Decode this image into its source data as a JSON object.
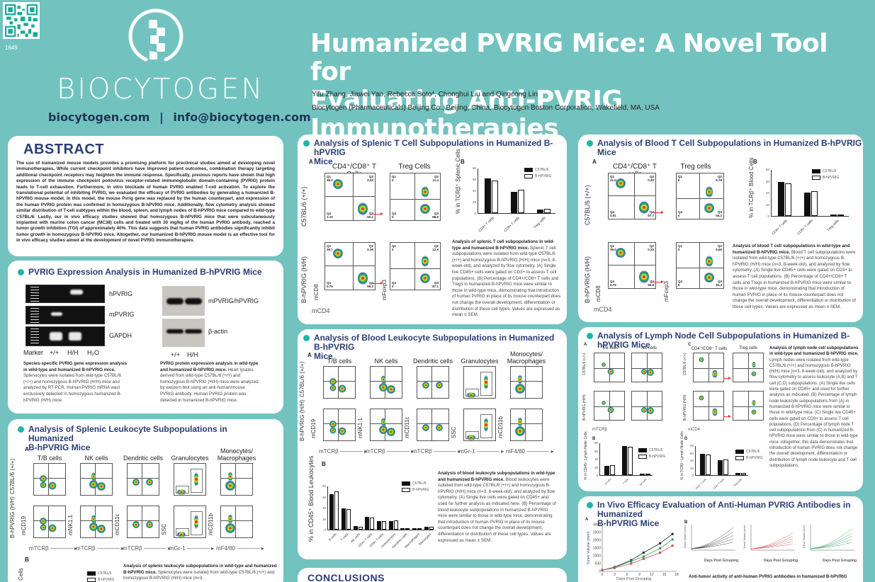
{
  "header": {
    "poster_number": "1649",
    "logo_text": "BIOCYTOGEN",
    "website": "biocytogen.com",
    "separator": "|",
    "email": "info@biocytogen.com",
    "title_line1": "Humanized PVRIG Mice: A Novel Tool for",
    "title_line2": "Evaluating Anti-PVRIG Immunotherapies",
    "authors": "Yifu Zhang, Jiawei Yao, Rebecca Soto*, Chonghui Liu and Qingcong Lin",
    "affiliation": "Biocytogen (Pharmaceuticals) Beijing Co., Beijing, China; Biocytogen Boston Corporation, Wakefield, MA, USA"
  },
  "abstract": {
    "heading": "ABSTRACT",
    "text": "The use of humanized mouse models provides a promising platform for preclinical studies aimed at developing novel immunotherapies. While current checkpoint inhibitors have improved patient outcomes, combination therapy targeting additional checkpoint receptors may heighten the immune response. Specifically, previous reports have shown that high expression of the immune checkpoint poliovirus receptor-related immunoglobulin domain-containing (PVRIG) protein leads to T-cell exhaustion. Furthermore, in vitro blockade of human PVRIG enabled T-cell activation. To explore the translational potential of inhibiting PVRIG, we evaluated the efficacy of PVRIG antibodies by generating a humanized B-hPVRIG mouse model. In this model, the mouse Pvrig gene was replaced by the human counterpart, and expression of the human PVRIG protein was confirmed in homozygous B-hPVRIG mice. Additionally, flow cytometry analysis showed similar distribution of T-cell subtypes within the blood, spleen, and lymph nodes of B-hPVRIG mice compared to wild-type C57BL/6. Lastly, our in vivo efficacy studies showed that homozygous B-hPVRIG mice that were subcutaneously implanted with murine colon cancer (MC38) cells and treated with 30 mg/kg of the human PVRIG antibody, reached a tumor growth inhibition (TGI) of approximately 40%. This data suggests that human PVRIG antibodies significantly inhibit tumor growth in homozygous B-hPVRIG mice. Altogether, our humanized B-hPVRIG mouse model is an effective tool for in vivo efficacy studies aimed at the development of novel PVRIG immunotherapies."
  },
  "expression": {
    "title": "PVRIG Expression Analysis in Humanized B-hPVRIG Mice",
    "gel_labels": [
      "hPVRIG",
      "mPVRIG",
      "GAPDH"
    ],
    "gel_lanes": [
      "Marker",
      "+/+",
      "H/H",
      "H₂O"
    ],
    "wb_labels": [
      "mPVRIG/hPVRIG",
      "β-actin"
    ],
    "wb_lanes": [
      "+/+",
      "H/H"
    ],
    "caption_left_bold": "Species-specific PVRIG gene expression analysis in wild-type and humanized B-hPVRIG mice.",
    "caption_left": "Splenocytes were isolated from wild-type C57BL/6 (+/+) and homozygous B-hPVRIG (H/H) mice and analyzed by RT-PCR. Human PVRIG mRNA wast exclusively detected in homozygous humanized B-hPVRIG (H/H) mice.",
    "caption_right_bold": "PVRIG protein expression analysis in wild-type and humanized B-hPVRIG mice.",
    "caption_right": "Heart lysates derived from wild-type C57BL/6 (+/+) and homozygous B-hPVRIG (H/H) mice were analyzed by western blot using an anti-human/mouse PVRIG antibody. Human PVRIG protein was detected in humanized B-hPVRIG mice."
  },
  "splenic_leuk": {
    "title_line1": "Analysis of Splenic Leukocyte Subpopulations in Humanized",
    "title_line2": "B-hPVRIG Mice",
    "label_a": "A",
    "label_b": "B",
    "columns": [
      "T/B cells",
      "NK cells",
      "Dendritic cells",
      "Granulocytes",
      "Monocytes/\nMacrophages"
    ],
    "rows": [
      "C57BL/6 (+/+)",
      "B-hPVRIG (H/H)"
    ],
    "x_axes": [
      "mTCRβ",
      "mTCRβ",
      "mTCRβ",
      "mGr-1",
      "mF4/80"
    ],
    "y_axes": [
      "mCD19",
      "mNK1.1",
      "mCD11c",
      "SSC",
      "mCD11b"
    ],
    "legend": [
      "C57BL/6",
      "B-hPVRIG"
    ],
    "y_partial": "Cells",
    "caption_bold": "Analysis of splenic leukocyte subpopulations in wild-type and humanized B-hPVRIG mice.",
    "caption": "Splenocytes were isolated from wild-type C57BL/6 (+/+) and homozygous B-hPVRIG (H/H) mice (n=3,"
  },
  "splenic_t": {
    "title_line1": "Analysis of Splenic T Cell Subpopulations in Humanized B-hPVRIG",
    "title_line2": "Mice",
    "label_a": "A",
    "label_b": "B",
    "col_cd": "CD4⁺/CD8⁺ T Cells",
    "col_treg": "Treg Cells",
    "rows": [
      "C57BL/6 (+/+)",
      "B-hPVRIG (H/H)"
    ],
    "x_axis": "mCD4",
    "y_axis_cd8": "mCD8",
    "y_axis_foxp3": "mFoxp3",
    "wt_q": {
      "q1": "38.2",
      "q2": "0.53",
      "q3": "60.2",
      "q4": "1.10"
    },
    "hh_q": {
      "q1": "39.7",
      "q2": "0.36",
      "q3": "59.2",
      "q4": "0.75"
    },
    "wt_treg": {
      "q1": "0",
      "q2": "11.4",
      "q3": "88.6",
      "q4": "0"
    },
    "hh_treg": {
      "q1": "0",
      "q2": "12.9",
      "q3": "87.1",
      "q4": "0"
    },
    "legend": [
      "C57BL/6",
      "B-hPVRIG"
    ],
    "y_label": "% in TCRβ⁺ Splenic Cells",
    "caption_bold": "Analysis of splenic T cell subpopulations in wild-type and humanized B-hPVRIG mice.",
    "caption": "Splenic T cell subpopulations were isolated from wild-type C57BL/6 (+/+) and homozygous B-hPVRIG (H/H) mice (n=3, 8-week-old), and analyzed by flow cytometry. (A) Single live CD45+ cells were gated on CD3+ to assess T cell populations. (B) Percentage of CD4+/CD8+ T cells and Tregs in humanized B-hPVRIG mice were similar to those in wild-type mice, demonstrating that introduction of human PVRIG in place of its mouse counterpart does not change the overall development, differentiation or distribution of these cell types. Values are expressed as mean ± SEM."
  },
  "blood_leuk": {
    "title_line1": "Analysis of Blood Leukocyte Subpopulations in Humanized B-hPVRIG",
    "title_line2": "Mice",
    "label_a": "A",
    "label_b": "B",
    "columns": [
      "T/B cells",
      "NK cells",
      "Dendritic cells",
      "Granulocytes",
      "Monocytes/\nMacrophages"
    ],
    "rows": [
      "C57BL/6 (+/+)",
      "B-hPVRIG (H/H)"
    ],
    "x_axes": [
      "mTCRβ",
      "mTCRβ",
      "mTCRβ",
      "mGr-1",
      "mF4/80"
    ],
    "y_axes": [
      "mCD19",
      "mNK1.1",
      "mCD11c",
      "SSC",
      "mCD11b"
    ],
    "legend": [
      "C57BL/6",
      "B-hPVRIG"
    ],
    "y_label": "% in CD45⁺ Blood Leukocytes",
    "caption_bold": "Analysis of blood leukocyte subpopulations in wild-type and humanized B-hPVRIG mice.",
    "caption": "Blood leukocytes were isolated from wild-type C57BL/6 (+/+) and homozygous B-hPVRIG (H/H) mice (n=3, 8-week-old), and analyzed by flow cytometry. (A) Single live cells were gated on CD45+ and used for further analysis as indicated here. (B) Percentage of blood leukocyte subpopulations in humanized B-hPVRIG mice were similar to those in wild-type mice, demonstrating that introduction of human PVRIG in place of its mouse counterpart does not change the overall development, differentiation or distribution of these cell types. Values are expressed as mean ± SEM."
  },
  "conclusions": {
    "heading": "CONCLUSIONS"
  },
  "blood_t": {
    "title": "Analysis of Blood T Cell Subpopulations in Humanized B-hPVRIG Mice",
    "label_a": "A",
    "label_b": "B",
    "col_cd": "CD4⁺/CD8⁺ T cells",
    "col_treg": "Treg cells",
    "rows": [
      "C57BL/6 (+/+)",
      "B-hPVRIG (H/H)"
    ],
    "x_axis": "mCD4",
    "y_axis_cd8": "mCD8",
    "y_axis_foxp3": "mFoxp3",
    "wt_q": {
      "q1": "41.0",
      "q2": "0.30",
      "q3": "57.7",
      "q4": "0.81"
    },
    "hh_q": {
      "q1": "39.0",
      "q2": "0.32",
      "q3": "59.9",
      "q4": "0.79"
    },
    "wt_treg": {
      "q1": "0",
      "q2": "5.79",
      "q3": "94.2",
      "q4": "0"
    },
    "hh_treg": {
      "q1": "0",
      "q2": "5.65",
      "q3": "94.3",
      "q4": "0"
    },
    "legend": [
      "C57BL/6",
      "B-hPVRIG"
    ],
    "y_label": "% in TCRβ⁺ Blood Cells",
    "caption_bold": "Analysis of blood T cell subpopulations in wild-type and humanized B-hPVRIG mice.",
    "caption": "Blood T cell subpopulations were isolated from wild-type C57BL/6 (+/+) and homozygous B-hPVRIG (H/H) mice (n=3, 8-week-old), and analyzed by flow cytometry. (A) Single live CD45+ cells were gated on CD3+ to assess T cell populations. (B) Percentage of CD4+/CD8+ T cells and Tregs in humanized B-hPVRIG mice were similar to those in wild-type mice, demonstrating that introduction of human PVRIG in place of its mouse counterpart does not change the overall development, differentiation or distribution of these cell types. Values are expressed as mean ± SEM."
  },
  "lymph": {
    "title": "Analysis of Lymph Node Cell Subpopulations in Humanized B-hPVRIG Mice",
    "labels": [
      "A",
      "B",
      "C",
      "D"
    ],
    "col_heads": [
      "T/B cells",
      "NK cells",
      "CD4⁺/CD8⁺ T cells",
      "Treg cells"
    ],
    "rows": [
      "C57BL/6 (+/+)",
      "B-hPVRIG (H/H)"
    ],
    "x_axes": [
      "mTCRβ",
      "mCD4"
    ],
    "y_axes": [
      "mCD19",
      "mNK1.1",
      "mCD8",
      "mFoxp3"
    ],
    "legend": [
      "C57BL/6",
      "B-hPVRIG"
    ],
    "y_label_b": "% in CD45⁺ Lymph Node Cells",
    "y_label_d": "% in TCRβ⁺ Lymph Node Cells",
    "caption_bold": "Analysis of lymph node cell subpopulations in wild-type and humanized B-hPVRIG mice.",
    "caption": "Lymph nodes were isolated from wild-type C57BL/6 (+/+) and homozygous B-hPVRIG (H/H) mice (n=3, 8-week-old), and analyzed by flow cytometry to assess leukocyte (A,B) and T cell (C,D) subpopulations. (A) Single live cells were gated on CD45+ and used for further analysis as indicated. (B) Percentage of lymph node leukocyte subpopulations from (A) in humanized B-hPVRIG mice were similar to those in wild-type mice. (C) Single live CD45+ cells were gated on CD3+ to assess T cell populations. (D) Percentage of lymph node T cell subpopulations from (C) in humanized B-hPVRIG mice were similar to those in wild-type mice. Altogether, this data demonstrates that introduction of human PVRIG does not change the overall development, differentiation or distribution of lymph node leukocyte and T cell subpopulations."
  },
  "invivo": {
    "title_line1": "In Vivo Efficacy Evaluation of Anti-Human PVRIG Antibodies in Humanized",
    "title_line2": "B-hPVRIG Mice",
    "label_a": "A",
    "label_b": "B",
    "x_label": "Days Post Grouping",
    "y_label": "Tumor Volume (mm³)",
    "caption_bold": "Anti-tumor activity of anti-human PVRIG antibodies in humanized B-hPVRIG"
  },
  "chart_data": [
    {
      "type": "bar",
      "title": "Splenic T cells (B)",
      "categories": [
        "CD4+ T cells",
        "CD8+ T cells",
        "Treg cells"
      ],
      "series": [
        {
          "name": "C57BL/6",
          "values": [
            61,
            37,
            6
          ]
        },
        {
          "name": "B-hPVRIG",
          "values": [
            57,
            41,
            7
          ]
        }
      ],
      "ylabel": "% in TCRβ+ Splenic Cells",
      "ylim": [
        0,
        80
      ]
    },
    {
      "type": "bar",
      "title": "Blood T cells (B)",
      "categories": [
        "CD4+ T cells",
        "CD8+ T cells",
        "Treg cells"
      ],
      "series": [
        {
          "name": "C57BL/6",
          "values": [
            58,
            40,
            3
          ]
        },
        {
          "name": "B-hPVRIG",
          "values": [
            56,
            43,
            3
          ]
        }
      ],
      "ylabel": "% in TCRβ+ Blood Cells",
      "ylim": [
        0,
        80
      ]
    },
    {
      "type": "bar",
      "title": "Blood leukocytes (B)",
      "categories": [
        "B cells",
        "T cells",
        "NK cells",
        "CD4+ T cells",
        "CD8+ T cells",
        "Granulocytes",
        "Dendritic cells",
        "Macrophages",
        "Monocytes"
      ],
      "series": [
        {
          "name": "C57BL/6",
          "values": [
            48,
            29,
            5,
            17,
            12,
            12,
            0.3,
            1,
            4
          ]
        },
        {
          "name": "B-hPVRIG",
          "values": [
            52,
            28,
            4,
            16,
            12,
            13,
            0.3,
            0.8,
            4
          ]
        }
      ],
      "ylabel": "% in CD45+ Blood Leukocytes",
      "ylim": [
        0,
        60
      ]
    },
    {
      "type": "bar",
      "title": "Lymph node leukocytes (B)",
      "categories": [
        "B cells",
        "T cells",
        "NK cells"
      ],
      "series": [
        {
          "name": "C57BL/6",
          "values": [
            22,
            72,
            1
          ]
        },
        {
          "name": "B-hPVRIG",
          "values": [
            25,
            69,
            1
          ]
        }
      ],
      "ylabel": "% in CD45+ Lymph Node Cells",
      "ylim": [
        0,
        80
      ]
    },
    {
      "type": "bar",
      "title": "Lymph node T cells (D)",
      "categories": [
        "CD4+ T cells",
        "CD8+ T cells",
        "Treg cells"
      ],
      "series": [
        {
          "name": "C57BL/6",
          "values": [
            58,
            40,
            5
          ]
        },
        {
          "name": "B-hPVRIG",
          "values": [
            56,
            41,
            6
          ]
        }
      ],
      "ylabel": "% in TCRβ+ Lymph Node Cells",
      "ylim": [
        0,
        80
      ]
    },
    {
      "type": "line",
      "title": "Tumor growth (A)",
      "x": [
        0,
        3,
        7,
        10,
        14,
        17
      ],
      "series": [
        {
          "name": "black",
          "color": "#222222",
          "values": [
            80,
            280,
            720,
            1200,
            1800,
            2400
          ]
        },
        {
          "name": "green",
          "color": "#2a9a5a",
          "values": [
            80,
            260,
            650,
            950,
            1480,
            2050
          ]
        },
        {
          "name": "red",
          "color": "#c0504d",
          "values": [
            80,
            220,
            500,
            800,
            1200,
            1650
          ]
        }
      ],
      "xlabel": "Days Post Grouping",
      "ylabel": "Tumor Volume (mm³)",
      "xlim": [
        0,
        18
      ],
      "ylim": [
        0,
        3000
      ],
      "xticks": [
        0,
        3,
        6,
        9,
        12,
        15,
        18
      ],
      "yticks": [
        0,
        500,
        1000,
        1500,
        2000,
        2500,
        3000
      ]
    }
  ]
}
